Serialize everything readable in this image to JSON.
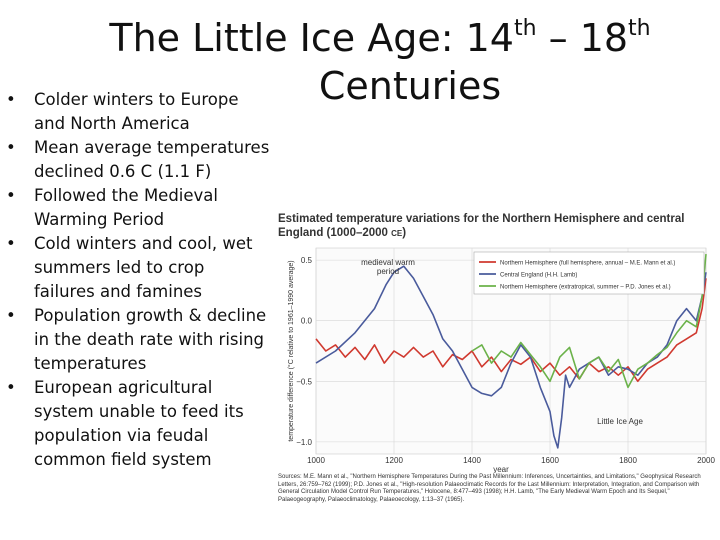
{
  "title": {
    "part1": "The Little Ice Age: 14",
    "sup1": "th",
    "part2": " – 18",
    "sup2": "th",
    "line2": "Centuries"
  },
  "bullets": [
    "Colder winters to Europe and North America",
    "Mean average temperatures declined 0.6 C (1.1 F)",
    "Followed the Medieval Warming Period",
    "Cold winters and cool, wet summers led to crop failures and famines",
    "Population growth & decline in the death rate with rising temperatures",
    "European agricultural system unable to feed its population via feudal common field system"
  ],
  "figure": {
    "title": "Estimated temperature variations for the Northern Hemisphere and central England (1000–2000",
    "title_ce": "CE",
    "title_end": ")",
    "source": "Sources: M.E. Mann et al., \"Northern Hemisphere Temperatures During the Past Millennium: Inferences, Uncertainties, and Limitations,\" Geophysical Research Letters, 26:759–762 (1999); P.D. Jones et al., \"High-resolution Palaeoclimatic Records for the Last Millennium: Interpretation, Integration, and Comparison with General Circulation Model Control Run Temperatures,\" Holocene, 8:477–493 (1998); H.H. Lamb, \"The Early Medieval Warm Epoch and Its Sequel,\" Palaeogeography, Palaeoclimatology, Palaeoecology, 1:13–37 (1965).",
    "medieval_label_1": "medieval warm",
    "medieval_label_2": "period",
    "lia_label": "Little Ice Age"
  },
  "chart_data": {
    "type": "line",
    "title": "Estimated temperature variations for the Northern Hemisphere and central England (1000–2000 CE)",
    "xlabel": "year",
    "ylabel": "temperature difference (°C relative to 1961–1990 average)",
    "xlim": [
      1000,
      2000
    ],
    "ylim": [
      -1.1,
      0.6
    ],
    "xticks": [
      1000,
      1200,
      1400,
      1600,
      1800,
      2000
    ],
    "yticks": [
      0.5,
      0.0,
      -0.5,
      -1.0
    ],
    "ytick_labels": [
      "0.5",
      "0.0",
      "−0.5",
      "−1.0"
    ],
    "grid": true,
    "legend_position": "top-right",
    "series": [
      {
        "name": "Northern Hemisphere (full hemisphere, annual – M.E. Mann et al.)",
        "color": "#d0392f",
        "x": [
          1000,
          1025,
          1050,
          1075,
          1100,
          1125,
          1150,
          1175,
          1200,
          1225,
          1250,
          1275,
          1300,
          1325,
          1350,
          1375,
          1400,
          1425,
          1450,
          1475,
          1500,
          1525,
          1550,
          1575,
          1600,
          1625,
          1650,
          1675,
          1700,
          1725,
          1750,
          1775,
          1800,
          1825,
          1850,
          1875,
          1900,
          1925,
          1950,
          1975,
          1990,
          2000
        ],
        "y": [
          -0.15,
          -0.25,
          -0.2,
          -0.3,
          -0.22,
          -0.32,
          -0.2,
          -0.35,
          -0.25,
          -0.3,
          -0.22,
          -0.3,
          -0.25,
          -0.38,
          -0.28,
          -0.32,
          -0.25,
          -0.38,
          -0.3,
          -0.42,
          -0.32,
          -0.36,
          -0.3,
          -0.42,
          -0.35,
          -0.45,
          -0.38,
          -0.48,
          -0.35,
          -0.42,
          -0.38,
          -0.45,
          -0.38,
          -0.5,
          -0.4,
          -0.35,
          -0.3,
          -0.2,
          -0.15,
          -0.1,
          0.1,
          0.35
        ]
      },
      {
        "name": "Central England (H.H. Lamb)",
        "color": "#4a5b9c",
        "x": [
          1000,
          1050,
          1100,
          1150,
          1180,
          1200,
          1225,
          1250,
          1275,
          1300,
          1325,
          1350,
          1375,
          1400,
          1425,
          1450,
          1475,
          1500,
          1525,
          1550,
          1575,
          1600,
          1610,
          1620,
          1630,
          1640,
          1650,
          1675,
          1700,
          1725,
          1750,
          1775,
          1800,
          1825,
          1850,
          1875,
          1900,
          1925,
          1950,
          1975,
          1990,
          2000
        ],
        "y": [
          -0.35,
          -0.25,
          -0.1,
          0.1,
          0.3,
          0.4,
          0.45,
          0.35,
          0.2,
          0.05,
          -0.15,
          -0.25,
          -0.4,
          -0.55,
          -0.6,
          -0.62,
          -0.55,
          -0.35,
          -0.2,
          -0.3,
          -0.55,
          -0.75,
          -0.95,
          -1.05,
          -0.8,
          -0.45,
          -0.55,
          -0.4,
          -0.35,
          -0.3,
          -0.45,
          -0.38,
          -0.4,
          -0.45,
          -0.35,
          -0.3,
          -0.2,
          0.0,
          0.1,
          0.0,
          0.2,
          0.4
        ]
      },
      {
        "name": "Northern Hemisphere (extratropical, summer – P.D. Jones et al.)",
        "color": "#6bb24a",
        "x": [
          1400,
          1425,
          1450,
          1475,
          1500,
          1525,
          1550,
          1575,
          1600,
          1625,
          1650,
          1675,
          1700,
          1725,
          1750,
          1775,
          1800,
          1825,
          1850,
          1875,
          1900,
          1925,
          1950,
          1975,
          1990,
          2000
        ],
        "y": [
          -0.25,
          -0.2,
          -0.35,
          -0.25,
          -0.3,
          -0.18,
          -0.28,
          -0.38,
          -0.5,
          -0.3,
          -0.22,
          -0.48,
          -0.35,
          -0.3,
          -0.42,
          -0.32,
          -0.55,
          -0.4,
          -0.35,
          -0.28,
          -0.22,
          -0.1,
          0.0,
          -0.05,
          0.2,
          0.55
        ]
      }
    ],
    "annotations": [
      "medieval warm period",
      "Little Ice Age"
    ]
  }
}
